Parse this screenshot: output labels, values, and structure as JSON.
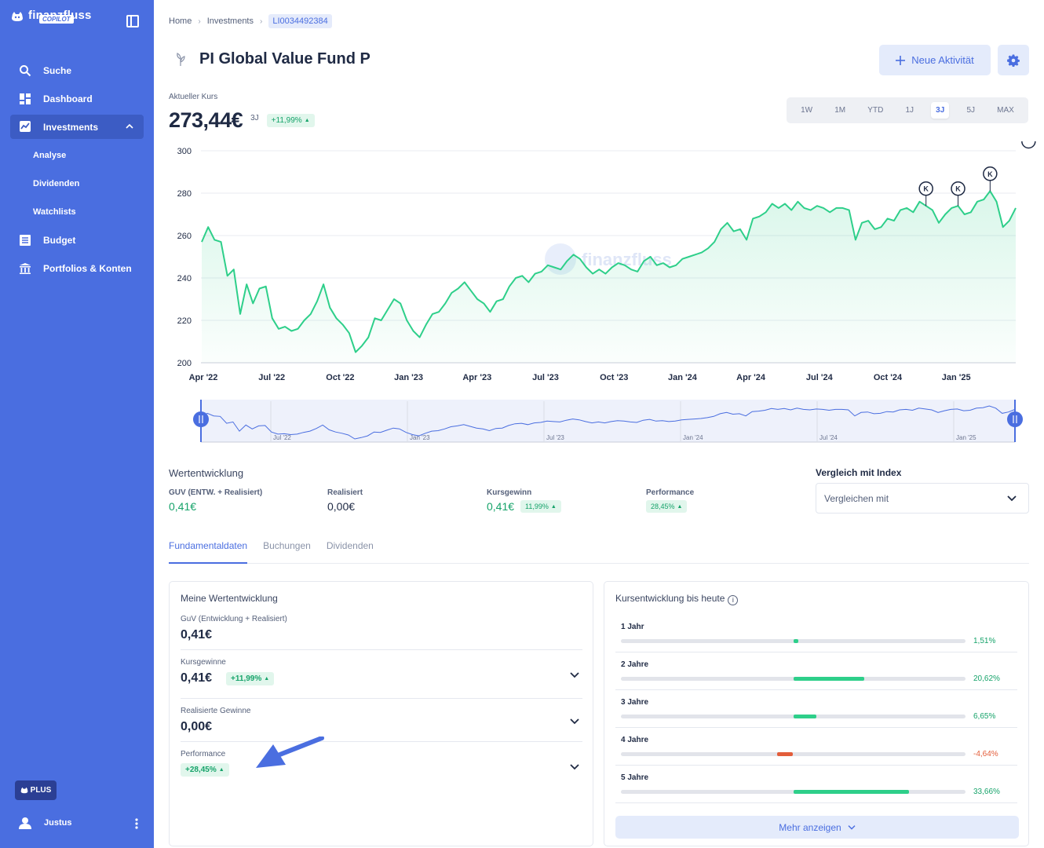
{
  "app": {
    "logo_text": "finanzfluss",
    "logo_badge": "COPILOT"
  },
  "sidebar": {
    "items": [
      {
        "label": "Suche",
        "icon": "search-icon"
      },
      {
        "label": "Dashboard",
        "icon": "dashboard-icon"
      },
      {
        "label": "Investments",
        "icon": "trend-icon",
        "active": true
      },
      {
        "label": "Analyse"
      },
      {
        "label": "Dividenden"
      },
      {
        "label": "Watchlists"
      },
      {
        "label": "Budget",
        "icon": "budget-icon"
      },
      {
        "label": "Portfolios & Konten",
        "icon": "bank-icon"
      }
    ],
    "plus_label": "PLUS",
    "user_name": "Justus"
  },
  "breadcrumb": {
    "home": "Home",
    "investments": "Investments",
    "isin": "LI0034492384"
  },
  "header": {
    "title": "PI Global Value Fund P",
    "new_activity": "Neue Aktivität"
  },
  "price": {
    "label": "Aktueller Kurs",
    "value": "273,44€",
    "period": "3J",
    "change": "+11,99%"
  },
  "ranges": [
    "1W",
    "1M",
    "YTD",
    "1J",
    "3J",
    "5J",
    "MAX"
  ],
  "active_range": "3J",
  "chart_data": {
    "type": "line",
    "ylim": [
      200,
      300
    ],
    "y_ticks": [
      "300",
      "280",
      "260",
      "240",
      "220",
      "200"
    ],
    "x_ticks": [
      "Apr '22",
      "Jul '22",
      "Oct '22",
      "Jan '23",
      "Apr '23",
      "Jul '23",
      "Oct '23",
      "Jan '24",
      "Apr '24",
      "Jul '24",
      "Oct '24",
      "Jan '25"
    ],
    "nav_ticks": [
      "Jul '22",
      "Jan '23",
      "Jul '23",
      "Jan '24",
      "Jul '24",
      "Jan '25"
    ],
    "watermark": "finanzfluss",
    "marker_label": "K",
    "marker_indices": [
      113,
      118,
      123,
      129
    ],
    "values": [
      257,
      264,
      258,
      257,
      241,
      244,
      223,
      237,
      228,
      235,
      236,
      221,
      216,
      217,
      215,
      216,
      220,
      223,
      229,
      237,
      226,
      221,
      218,
      214,
      205,
      208,
      212,
      221,
      220,
      225,
      230,
      228,
      220,
      215,
      212,
      218,
      223,
      224,
      228,
      233,
      235,
      238,
      234,
      230,
      228,
      224,
      229,
      230,
      236,
      240,
      241,
      238,
      242,
      243,
      246,
      245,
      244,
      248,
      251,
      249,
      245,
      242,
      244,
      242,
      245,
      247,
      246,
      244,
      243,
      248,
      250,
      246,
      247,
      245,
      246,
      249,
      250,
      251,
      252,
      254,
      257,
      263,
      266,
      262,
      263,
      258,
      268,
      269,
      271,
      275,
      273,
      275,
      272,
      276,
      273,
      272,
      274,
      273,
      271,
      273,
      273,
      272,
      258,
      266,
      267,
      263,
      264,
      268,
      267,
      272,
      273,
      271,
      276,
      274,
      272,
      266,
      270,
      273,
      274,
      270,
      271,
      276,
      277,
      281,
      276,
      264,
      267,
      273
    ]
  },
  "wertentwicklung": {
    "title": "Wertentwicklung",
    "metrics": [
      {
        "label": "GUV (ENTW. + Realisiert)",
        "value": "0,41€"
      },
      {
        "label": "Realisiert",
        "value": "0,00€"
      },
      {
        "label": "Kursgewinn",
        "value": "0,41€",
        "badge": "11,99%"
      },
      {
        "label": "Performance",
        "badge": "28,45%"
      }
    ],
    "compare_title": "Vergleich mit Index",
    "compare_placeholder": "Vergleichen mit"
  },
  "tabs": [
    "Fundamentaldaten",
    "Buchungen",
    "Dividenden"
  ],
  "meine": {
    "title": "Meine Wertentwicklung",
    "rows": [
      {
        "label": "GuV (Entwicklung + Realisiert)",
        "value": "0,41€"
      },
      {
        "label": "Kursgewinne",
        "value": "0,41€",
        "badge": "+11,99%"
      },
      {
        "label": "Realisierte Gewinne",
        "value": "0,00€"
      },
      {
        "label": "Performance",
        "badge": "+28,45%"
      }
    ]
  },
  "kurs": {
    "title": "Kursentwicklung bis heute",
    "rows": [
      {
        "label": "1 Jahr",
        "value": "1,51%",
        "pct": 1.51
      },
      {
        "label": "2 Jahre",
        "value": "20,62%",
        "pct": 20.62
      },
      {
        "label": "3 Jahre",
        "value": "6,65%",
        "pct": 6.65
      },
      {
        "label": "4 Jahre",
        "value": "-4,64%",
        "pct": -4.64
      },
      {
        "label": "5 Jahre",
        "value": "33,66%",
        "pct": 33.66
      }
    ],
    "more": "Mehr anzeigen"
  },
  "colors": {
    "sidebar": "#4a6ee0",
    "accent": "#4a6ee0",
    "positive": "#16a36a",
    "line": "#2ecf8a",
    "negative": "#e35d3a"
  }
}
